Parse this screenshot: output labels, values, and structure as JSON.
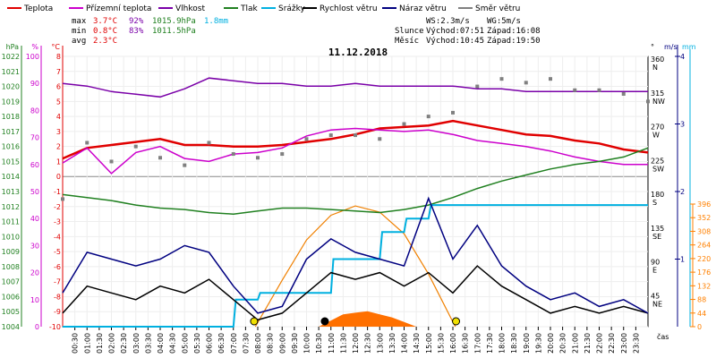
{
  "legend": [
    {
      "name": "Teplota",
      "color": "#e00000"
    },
    {
      "name": "Přízemní teplota",
      "color": "#cc00cc"
    },
    {
      "name": "Vlhkost",
      "color": "#7a00a8"
    },
    {
      "name": "Tlak",
      "color": "#208020"
    },
    {
      "name": "Srážky",
      "color": "#00b0e0"
    },
    {
      "name": "Rychlost větru",
      "color": "#000000"
    },
    {
      "name": "Náraz větru",
      "color": "#000080"
    },
    {
      "name": "Směr větru",
      "color": "#808080"
    }
  ],
  "stats": {
    "max_label": "max",
    "max_temp": "3.7°C",
    "max_hum": "92%",
    "max_press": "1015.9hPa",
    "max_rain": "1.8mm",
    "min_label": "min",
    "min_temp": "0.8°C",
    "min_hum": "83%",
    "min_press": "1011.5hPa",
    "avg_label": "avg",
    "avg_temp": "2.3°C"
  },
  "wind_info": {
    "ws": "WS:2.3m/s",
    "wg": "WG:5m/s"
  },
  "sun": {
    "label": "Slunce",
    "rise": "Východ:07:51",
    "set": "Západ:16:08"
  },
  "moon": {
    "label": "Měsíc",
    "rise": "Východ:10:45",
    "set": "Západ:19:50"
  },
  "date": "11.12.2018",
  "time_label": "čas",
  "chart_data": {
    "type": "line",
    "title": "11.12.2018",
    "x_ticks": [
      "00:30",
      "01:00",
      "01:30",
      "02:00",
      "02:30",
      "03:00",
      "03:30",
      "04:00",
      "04:30",
      "05:00",
      "05:30",
      "06:00",
      "06:30",
      "07:00",
      "07:30",
      "08:00",
      "08:30",
      "09:00",
      "09:30",
      "10:00",
      "10:30",
      "11:00",
      "11:30",
      "12:00",
      "12:30",
      "13:00",
      "13:30",
      "14:00",
      "14:30",
      "15:00",
      "15:30",
      "16:00",
      "16:30",
      "17:00",
      "17:30",
      "18:00",
      "18:30",
      "19:00",
      "19:30",
      "20:00",
      "20:30",
      "21:00",
      "21:30",
      "22:00",
      "22:30",
      "23:00",
      "23:30"
    ],
    "axes": {
      "hpa": {
        "label": "hPa",
        "range": [
          1004,
          1022
        ],
        "ticks": [
          1004,
          1005,
          1006,
          1007,
          1008,
          1009,
          1010,
          1011,
          1012,
          1013,
          1014,
          1015,
          1016,
          1017,
          1018,
          1019,
          1020,
          1021,
          1022
        ]
      },
      "pct": {
        "label": "%",
        "range": [
          0,
          100
        ],
        "ticks": [
          0,
          10,
          20,
          30,
          40,
          50,
          60,
          70,
          80,
          90,
          100
        ]
      },
      "temp": {
        "label": "°C",
        "range": [
          -10,
          8
        ],
        "ticks": [
          -10,
          -9,
          -8,
          -7,
          -6,
          -5,
          -4,
          -3,
          -2,
          -1,
          0,
          1,
          2,
          3,
          4,
          5,
          6,
          7,
          8
        ]
      },
      "dir": {
        "label": "°",
        "ticks": [
          {
            "v": 0,
            "t": "0"
          },
          {
            "v": 45,
            "t": "45",
            "d": "NE"
          },
          {
            "v": 90,
            "t": "90",
            "d": "E"
          },
          {
            "v": 135,
            "t": "135",
            "d": "SE"
          },
          {
            "v": 180,
            "t": "180",
            "d": "S"
          },
          {
            "v": 225,
            "t": "225",
            "d": "SW"
          },
          {
            "v": 270,
            "t": "270",
            "d": "W"
          },
          {
            "v": 315,
            "t": "315",
            "d": "NW"
          },
          {
            "v": 360,
            "t": "360",
            "d": "N"
          }
        ]
      },
      "ms": {
        "label": "m/s",
        "range": [
          0,
          4
        ],
        "ticks": [
          0,
          1,
          2,
          3,
          4
        ]
      },
      "mm": {
        "label": "mm",
        "range": [
          0,
          4
        ],
        "ticks": [
          0,
          1,
          2,
          3,
          4
        ]
      },
      "solar": {
        "range": [
          0,
          396
        ],
        "ticks": [
          0,
          44,
          88,
          132,
          176,
          220,
          264,
          308,
          352,
          396
        ]
      }
    },
    "series": [
      {
        "name": "Teplota",
        "axis": "temp",
        "color": "#e00000",
        "x": [
          0,
          1,
          2,
          3,
          4,
          5,
          6,
          7,
          8,
          9,
          10,
          11,
          12,
          13,
          14,
          15,
          16,
          17,
          18,
          19,
          20,
          21,
          22,
          23,
          24
        ],
        "y": [
          1.2,
          1.9,
          2.1,
          2.3,
          2.5,
          2.1,
          2.1,
          2.0,
          2.0,
          2.1,
          2.3,
          2.5,
          2.8,
          3.2,
          3.3,
          3.4,
          3.7,
          3.4,
          3.1,
          2.8,
          2.7,
          2.4,
          2.2,
          1.8,
          1.6
        ]
      },
      {
        "name": "Přízemní teplota",
        "axis": "temp",
        "color": "#cc00cc",
        "x": [
          0,
          1,
          2,
          3,
          4,
          5,
          6,
          7,
          8,
          9,
          10,
          11,
          12,
          13,
          14,
          15,
          16,
          17,
          18,
          19,
          20,
          21,
          22,
          23,
          24
        ],
        "y": [
          0.9,
          1.9,
          0.2,
          1.6,
          2.0,
          1.2,
          1.0,
          1.5,
          1.6,
          1.9,
          2.7,
          3.1,
          3.2,
          3.1,
          3.0,
          3.1,
          2.8,
          2.4,
          2.2,
          2.0,
          1.7,
          1.3,
          1.0,
          0.8,
          0.8
        ]
      },
      {
        "name": "Vlhkost",
        "axis": "pct",
        "color": "#7a00a8",
        "x": [
          0,
          1,
          2,
          3,
          4,
          5,
          6,
          7,
          8,
          9,
          10,
          11,
          12,
          13,
          14,
          15,
          16,
          17,
          18,
          19,
          20,
          21,
          22,
          23,
          24
        ],
        "y": [
          90,
          89,
          87,
          86,
          85,
          88,
          92,
          91,
          90,
          90,
          89,
          89,
          90,
          89,
          89,
          89,
          89,
          88,
          88,
          87,
          87,
          87,
          87,
          87,
          87
        ]
      },
      {
        "name": "Tlak",
        "axis": "hpa",
        "color": "#208020",
        "x": [
          0,
          1,
          2,
          3,
          4,
          5,
          6,
          7,
          8,
          9,
          10,
          11,
          12,
          13,
          14,
          15,
          16,
          17,
          18,
          19,
          20,
          21,
          22,
          23,
          24
        ],
        "y": [
          1012.8,
          1012.6,
          1012.4,
          1012.1,
          1011.9,
          1011.8,
          1011.6,
          1011.5,
          1011.7,
          1011.9,
          1011.9,
          1011.8,
          1011.7,
          1011.6,
          1011.8,
          1012.1,
          1012.6,
          1013.2,
          1013.7,
          1014.1,
          1014.5,
          1014.8,
          1015.0,
          1015.3,
          1015.9
        ]
      },
      {
        "name": "Srážky",
        "axis": "mm",
        "color": "#00b0e0",
        "x": [
          0,
          7.0,
          7.1,
          8.0,
          8.1,
          11.0,
          11.1,
          13.0,
          13.1,
          14.0,
          14.1,
          15.0,
          15.1,
          24
        ],
        "y": [
          0,
          0,
          0.4,
          0.4,
          0.5,
          0.5,
          1.0,
          1.0,
          1.4,
          1.4,
          1.6,
          1.6,
          1.8,
          1.8
        ]
      },
      {
        "name": "Rychlost větru",
        "axis": "ms",
        "color": "#000000",
        "x": [
          0,
          1,
          2,
          3,
          4,
          5,
          6,
          7,
          8,
          9,
          10,
          11,
          12,
          13,
          14,
          15,
          16,
          17,
          18,
          19,
          20,
          21,
          22,
          23,
          24
        ],
        "y": [
          0.2,
          0.6,
          0.5,
          0.4,
          0.6,
          0.5,
          0.7,
          0.4,
          0.1,
          0.2,
          0.5,
          0.8,
          0.7,
          0.8,
          0.6,
          0.8,
          0.5,
          0.9,
          0.6,
          0.4,
          0.2,
          0.3,
          0.2,
          0.3,
          0.2
        ]
      },
      {
        "name": "Náraz větru",
        "axis": "ms",
        "color": "#000080",
        "x": [
          0,
          1,
          2,
          3,
          4,
          5,
          6,
          7,
          8,
          9,
          10,
          11,
          12,
          13,
          14,
          15,
          16,
          17,
          18,
          19,
          20,
          21,
          22,
          23,
          24
        ],
        "y": [
          0.5,
          1.1,
          1.0,
          0.9,
          1.0,
          1.2,
          1.1,
          0.6,
          0.2,
          0.3,
          1.0,
          1.3,
          1.1,
          1.0,
          0.9,
          1.9,
          1.0,
          1.5,
          0.9,
          0.6,
          0.4,
          0.5,
          0.3,
          0.4,
          0.2
        ]
      },
      {
        "name": "Směr větru",
        "axis": "dir",
        "color": "#808080",
        "x": [
          0,
          1,
          2,
          3,
          4,
          5,
          6,
          7,
          8,
          9,
          10,
          11,
          12,
          13,
          14,
          15,
          16,
          17,
          18,
          19,
          20,
          21,
          22,
          23,
          24
        ],
        "y": [
          170,
          245,
          220,
          240,
          225,
          215,
          245,
          230,
          225,
          230,
          250,
          255,
          255,
          250,
          270,
          280,
          285,
          320,
          330,
          325,
          330,
          315,
          315,
          310,
          300
        ]
      }
    ],
    "solar": {
      "axis": "solar",
      "x": [
        7.9,
        9,
        10,
        11,
        12,
        13,
        14,
        15,
        16.1
      ],
      "y": [
        0,
        150,
        280,
        360,
        390,
        370,
        300,
        170,
        0
      ]
    },
    "solar_measured": {
      "axis": "solar",
      "x": [
        10.5,
        11,
        11.5,
        12,
        12.5,
        13,
        13.5,
        14,
        14.5
      ],
      "y": [
        0,
        20,
        40,
        45,
        50,
        40,
        30,
        15,
        0
      ]
    },
    "markers": [
      {
        "name": "sunrise",
        "x": 7.85,
        "color": "#f0e000"
      },
      {
        "name": "moonrise",
        "x": 10.75,
        "color": "#000000"
      },
      {
        "name": "sunset",
        "x": 16.13,
        "color": "#f0e000"
      }
    ]
  }
}
